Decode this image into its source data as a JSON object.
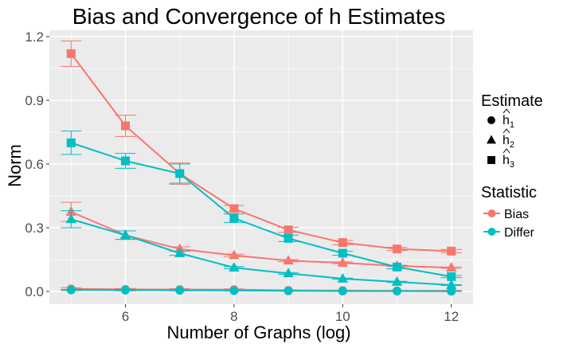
{
  "chart_data": {
    "type": "line",
    "title": "Bias and Convergence of h Estimates",
    "xlabel": "Number of Graphs (log)",
    "ylabel": "Norm",
    "xlim": [
      4.6,
      12.4
    ],
    "ylim": [
      -0.06,
      1.23
    ],
    "xticks": [
      6,
      8,
      10,
      12
    ],
    "yticks": [
      0.0,
      0.3,
      0.6,
      0.9,
      1.2
    ],
    "ytick_labels": [
      "0.0",
      "0.3",
      "0.6",
      "0.9",
      "1.2"
    ],
    "x": [
      5,
      6,
      7,
      8,
      9,
      10,
      11,
      12
    ],
    "grid": true,
    "colors": {
      "Bias": "#F8766D",
      "Differ": "#00BFC4",
      "panel": "#EBEBEB",
      "grid": "#ffffff"
    },
    "legend": {
      "position": "right",
      "shape_title": "Estimate",
      "shapes": [
        {
          "name": "h",
          "subscript": "1",
          "shape": "circle"
        },
        {
          "name": "h",
          "subscript": "2",
          "shape": "triangle"
        },
        {
          "name": "h",
          "subscript": "3",
          "shape": "square"
        }
      ],
      "color_title": "Statistic",
      "colors": [
        {
          "name": "Bias",
          "color": "#F8766D"
        },
        {
          "name": "Differ",
          "color": "#00BFC4"
        }
      ]
    },
    "series": [
      {
        "name": "h1-Bias",
        "estimate": "h1",
        "statistic": "Bias",
        "shape": "circle",
        "values": [
          0.012,
          0.01,
          0.009,
          0.009,
          0.005,
          0.004,
          0.003,
          0.003
        ],
        "err": [
          0.006,
          0.004,
          0.004,
          0.003,
          0.002,
          0.002,
          0.002,
          0.002
        ]
      },
      {
        "name": "h1-Differ",
        "estimate": "h1",
        "statistic": "Differ",
        "shape": "circle",
        "values": [
          0.007,
          0.006,
          0.005,
          0.004,
          0.003,
          0.002,
          0.002,
          0.001
        ],
        "err": [
          0.003,
          0.003,
          0.002,
          0.002,
          0.001,
          0.001,
          0.001,
          0.001
        ]
      },
      {
        "name": "h2-Bias",
        "estimate": "h2",
        "statistic": "Bias",
        "shape": "triangle",
        "values": [
          0.375,
          0.265,
          0.2,
          0.17,
          0.145,
          0.135,
          0.12,
          0.112
        ],
        "err": [
          0.045,
          0.02,
          0.01,
          0.006,
          0.005,
          0.004,
          0.003,
          0.003
        ]
      },
      {
        "name": "h2-Differ",
        "estimate": "h2",
        "statistic": "Differ",
        "shape": "triangle",
        "values": [
          0.34,
          0.265,
          0.18,
          0.112,
          0.085,
          0.06,
          0.045,
          0.03
        ],
        "err": [
          0.04,
          0.02,
          0.01,
          0.005,
          0.004,
          0.003,
          0.003,
          0.002
        ]
      },
      {
        "name": "h3-Bias",
        "estimate": "h3",
        "statistic": "Bias",
        "shape": "square",
        "values": [
          1.12,
          0.78,
          0.555,
          0.39,
          0.29,
          0.23,
          0.2,
          0.19
        ],
        "err": [
          0.06,
          0.05,
          0.05,
          0.015,
          0.012,
          0.01,
          0.008,
          0.008
        ]
      },
      {
        "name": "h3-Differ",
        "estimate": "h3",
        "statistic": "Differ",
        "shape": "square",
        "values": [
          0.7,
          0.615,
          0.555,
          0.345,
          0.25,
          0.18,
          0.115,
          0.07
        ],
        "err": [
          0.055,
          0.035,
          0.045,
          0.02,
          0.015,
          0.01,
          0.008,
          0.005
        ]
      }
    ]
  }
}
